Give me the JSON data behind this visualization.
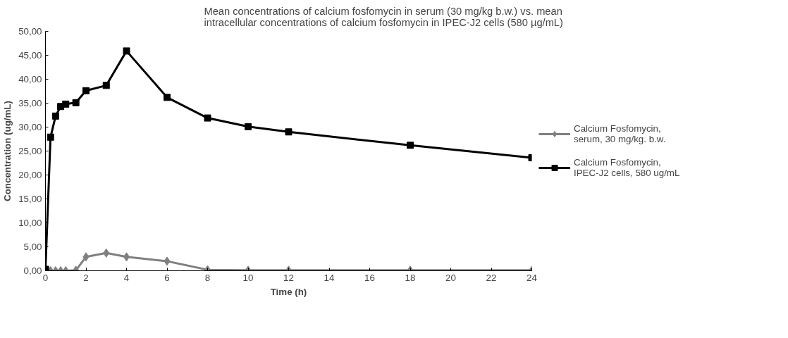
{
  "chart_data": {
    "type": "line",
    "title": "Mean concentrations of calcium fosfomycin in serum (30 mg/kg b.w.) vs. mean\nintracellular concentrations of calcium fosfomycin in IPEC-J2 cells (580 µg/mL)",
    "xlabel": "Time (h)",
    "ylabel": "Concentration (ug/mL)",
    "x": [
      0,
      0.25,
      0.5,
      0.75,
      1,
      1.5,
      2,
      3,
      4,
      6,
      8,
      10,
      12,
      18,
      24
    ],
    "series": [
      {
        "name": "Calcium Fosfomycin,\nserum, 30 mg/kg. b.w.",
        "color": "#808080",
        "marker": "diamond",
        "values": [
          0,
          0,
          0,
          0,
          0,
          0.1,
          2.9,
          3.7,
          2.9,
          2.0,
          0.2,
          0.1,
          0.1,
          0.1,
          0.1
        ]
      },
      {
        "name": "Calcium Fosfomycin,\nIPEC-J2 cells, 580 ug/mL",
        "color": "#000000",
        "marker": "square",
        "values": [
          0.3,
          27.9,
          32.3,
          34.3,
          34.8,
          35.1,
          37.6,
          38.7,
          45.9,
          36.2,
          31.9,
          30.1,
          29.0,
          26.2,
          23.6
        ]
      }
    ],
    "xlim": [
      0,
      24
    ],
    "xticks": [
      0,
      2,
      4,
      6,
      8,
      10,
      12,
      14,
      16,
      18,
      20,
      22,
      24
    ],
    "ylim": [
      0,
      50
    ],
    "yticks": [
      {
        "value": 0,
        "label": "0,00"
      },
      {
        "value": 5,
        "label": "5,00"
      },
      {
        "value": 10,
        "label": "10,00"
      },
      {
        "value": 15,
        "label": "15,00"
      },
      {
        "value": 20,
        "label": "20,00"
      },
      {
        "value": 25,
        "label": "25,00"
      },
      {
        "value": 30,
        "label": "30,00"
      },
      {
        "value": 35,
        "label": "35,00"
      },
      {
        "value": 40,
        "label": "40,00"
      },
      {
        "value": 45,
        "label": "45,00"
      },
      {
        "value": 50,
        "label": "50,00"
      }
    ],
    "grid": false,
    "legend": "right",
    "line_style": "solid"
  }
}
